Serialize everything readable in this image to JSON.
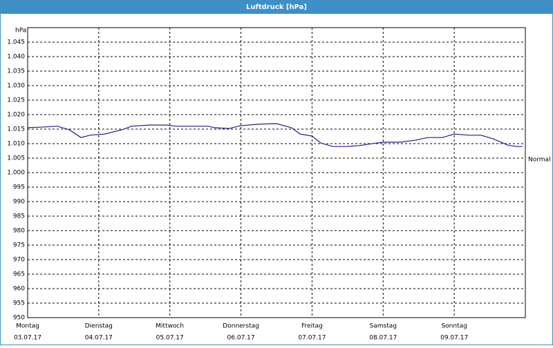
{
  "chart_data": {
    "type": "line",
    "title": "Luftdruck [hPa]",
    "y_label": "hPa",
    "x": [
      0,
      5,
      10,
      14,
      18,
      21,
      26,
      32,
      35,
      41,
      47,
      50,
      55,
      61,
      63,
      68,
      72,
      78,
      84,
      89,
      92,
      96,
      99,
      103,
      107,
      112,
      115,
      120,
      126,
      131,
      135,
      140,
      144,
      149,
      153,
      157,
      162,
      165,
      167
    ],
    "series": [
      {
        "name": "Luftdruck",
        "color": "#1c1c8f",
        "values": [
          1015.5,
          1015.7,
          1016.0,
          1014.8,
          1012.1,
          1012.9,
          1013.3,
          1014.8,
          1016.0,
          1016.4,
          1016.4,
          1016.0,
          1016.0,
          1016.0,
          1015.5,
          1015.2,
          1016.2,
          1016.7,
          1016.9,
          1015.5,
          1013.3,
          1012.6,
          1010.2,
          1009.0,
          1009.0,
          1009.3,
          1009.8,
          1010.5,
          1010.5,
          1011.2,
          1012.1,
          1012.1,
          1013.3,
          1012.9,
          1012.9,
          1011.7,
          1009.5,
          1009.0,
          1009.0
        ]
      }
    ],
    "xlim": [
      0,
      168
    ],
    "xticks": [
      {
        "value": 0,
        "label": "Montag"
      },
      {
        "value": 24,
        "label": "Dienstag"
      },
      {
        "value": 48,
        "label": "Mittwoch"
      },
      {
        "value": 72,
        "label": "Donnerstag"
      },
      {
        "value": 96,
        "label": "Freitag"
      },
      {
        "value": 120,
        "label": "Samstag"
      },
      {
        "value": 144,
        "label": "Sonntag"
      }
    ],
    "xtick_dates": [
      "03.07.17",
      "04.07.17",
      "05.07.17",
      "06.07.17",
      "07.07.17",
      "08.07.17",
      "09.07.17"
    ],
    "ylim": [
      950,
      1050
    ],
    "yticks": [
      950,
      955,
      960,
      965,
      970,
      975,
      980,
      985,
      990,
      995,
      {
        "value": 1000,
        "label": "1.000"
      },
      {
        "value": 1005,
        "label": "1.005"
      },
      {
        "value": 1010,
        "label": "1.010"
      },
      {
        "value": 1015,
        "label": "1.015"
      },
      {
        "value": 1020,
        "label": "1.020"
      },
      {
        "value": 1025,
        "label": "1.025"
      },
      {
        "value": 1030,
        "label": "1.030"
      },
      {
        "value": 1035,
        "label": "1.035"
      },
      {
        "value": 1040,
        "label": "1.040"
      },
      {
        "value": 1045,
        "label": "1.045"
      }
    ],
    "annotations": [
      {
        "text": "Normal",
        "value": 1004.5
      }
    ],
    "grid": true
  }
}
